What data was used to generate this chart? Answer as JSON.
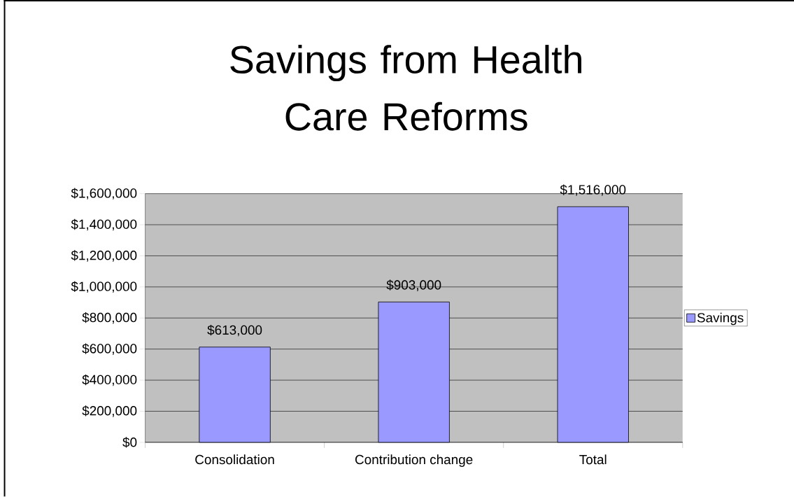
{
  "chart_data": {
    "type": "bar",
    "title": "Savings from Health Care Reforms",
    "categories": [
      "Consolidation",
      "Contribution change",
      "Total"
    ],
    "series": [
      {
        "name": "Savings",
        "color": "#9999ff",
        "values": [
          613000,
          903000,
          1516000
        ],
        "value_labels": [
          "$613,000",
          "$903,000",
          "$1,516,000"
        ]
      }
    ],
    "ylim": [
      0,
      1600000
    ],
    "yticks": [
      {
        "value": 0,
        "label": "$0"
      },
      {
        "value": 200000,
        "label": "$200,000"
      },
      {
        "value": 400000,
        "label": "$400,000"
      },
      {
        "value": 600000,
        "label": "$600,000"
      },
      {
        "value": 800000,
        "label": "$800,000"
      },
      {
        "value": 1000000,
        "label": "$1,000,000"
      },
      {
        "value": 1200000,
        "label": "$1,200,000"
      },
      {
        "value": 1400000,
        "label": "$1,400,000"
      },
      {
        "value": 1600000,
        "label": "$1,600,000"
      }
    ],
    "grid": "y",
    "legend": "right"
  }
}
